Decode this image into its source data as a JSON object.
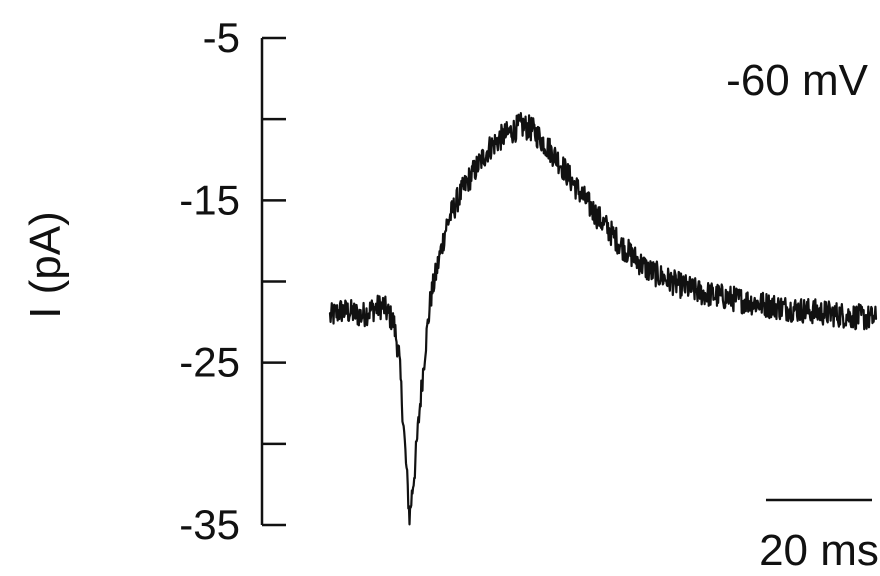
{
  "chart_data": {
    "type": "line",
    "title": "",
    "xlabel": "",
    "ylabel": "I (pA)",
    "ylim": [
      -35,
      -5
    ],
    "yticks": [
      -5,
      -10,
      -15,
      -20,
      -25,
      -30,
      -35
    ],
    "ytick_labels": [
      "-5",
      "",
      "-15",
      "",
      "-25",
      "",
      "-35"
    ],
    "x_unit": "ms",
    "xlim": [
      0,
      103
    ],
    "annotation": "-60 mV",
    "scale_bar": {
      "value": 20,
      "label": "20 ms"
    },
    "grid": false,
    "series": [
      {
        "x": [
          0,
          2,
          4,
          6,
          8,
          10,
          12,
          13,
          14,
          15,
          16,
          17,
          18,
          19,
          20,
          21,
          22,
          24,
          26,
          28,
          30,
          32,
          34,
          36,
          38,
          40,
          43,
          46,
          50,
          55,
          60,
          65,
          70,
          75,
          80,
          85,
          90,
          95,
          100,
          103
        ],
        "values": [
          -22.2,
          -21.8,
          -21.9,
          -22.1,
          -21.7,
          -21.5,
          -22.5,
          -24.5,
          -29.5,
          -34.5,
          -31.5,
          -27.5,
          -24.0,
          -21.0,
          -19.5,
          -18.0,
          -16.5,
          -15.0,
          -13.8,
          -12.8,
          -11.8,
          -11.2,
          -10.8,
          -10.4,
          -10.6,
          -11.3,
          -12.5,
          -14.0,
          -15.8,
          -17.8,
          -19.3,
          -20.1,
          -20.7,
          -21.0,
          -21.3,
          -21.6,
          -21.8,
          -22.0,
          -22.2,
          -22.3
        ]
      }
    ]
  }
}
